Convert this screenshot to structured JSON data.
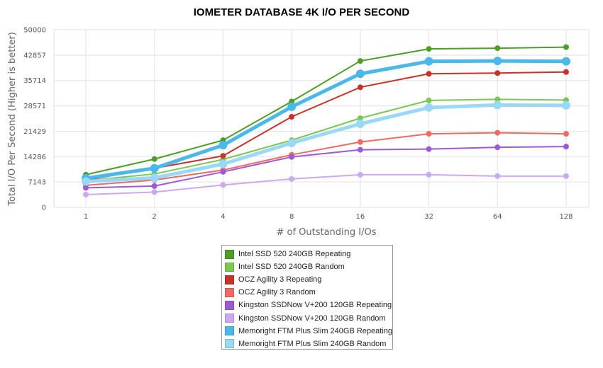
{
  "chart_data": {
    "type": "line",
    "title": "IOMETER DATABASE 4K I/O PER SECOND",
    "xlabel": "# of Outstanding I/Os",
    "ylabel": "Total I/O Per Second (Higher is better)",
    "categories": [
      "1",
      "2",
      "4",
      "8",
      "16",
      "32",
      "64",
      "128"
    ],
    "yticks": [
      "0",
      "7143",
      "14286",
      "21429",
      "28571",
      "35714",
      "42857",
      "50000"
    ],
    "ylim": [
      0,
      50000
    ],
    "grid": true,
    "legend_position": "bottom",
    "series": [
      {
        "name": "Intel SSD 520 240GB Repeating",
        "color": "#4e9e25",
        "values": [
          9200,
          13600,
          18900,
          29800,
          41200,
          44600,
          44800,
          45100
        ]
      },
      {
        "name": "Intel SSD 520 240GB Random",
        "color": "#7cc654",
        "values": [
          7500,
          9400,
          13500,
          18900,
          25100,
          30100,
          30400,
          30200
        ]
      },
      {
        "name": "OCZ Agility 3 Repeating",
        "color": "#c83228",
        "values": [
          7700,
          11000,
          14500,
          25500,
          33800,
          37600,
          37800,
          38100
        ]
      },
      {
        "name": "OCZ Agility 3 Random",
        "color": "#f06a62",
        "values": [
          6200,
          7700,
          10500,
          14800,
          18400,
          20700,
          21000,
          20700
        ]
      },
      {
        "name": "Kingston SSDNow V+200 120GB Repeating",
        "color": "#9b5bd6",
        "values": [
          5500,
          6000,
          10000,
          14200,
          16200,
          16400,
          16900,
          17100
        ]
      },
      {
        "name": "Kingston SSDNow V+200 120GB Random",
        "color": "#cba9ef",
        "values": [
          3600,
          4300,
          6300,
          8000,
          9200,
          9200,
          8800,
          8800
        ]
      },
      {
        "name": "Memoright FTM Plus Slim 240GB Repeating",
        "color": "#4ab8e8",
        "values": [
          8200,
          11000,
          17500,
          28300,
          37600,
          41100,
          41200,
          41100
        ]
      },
      {
        "name": "Memoright FTM Plus Slim 240GB Random",
        "color": "#9ad9f5",
        "values": [
          7300,
          8300,
          12200,
          18100,
          23500,
          28100,
          28800,
          28700
        ]
      }
    ]
  }
}
